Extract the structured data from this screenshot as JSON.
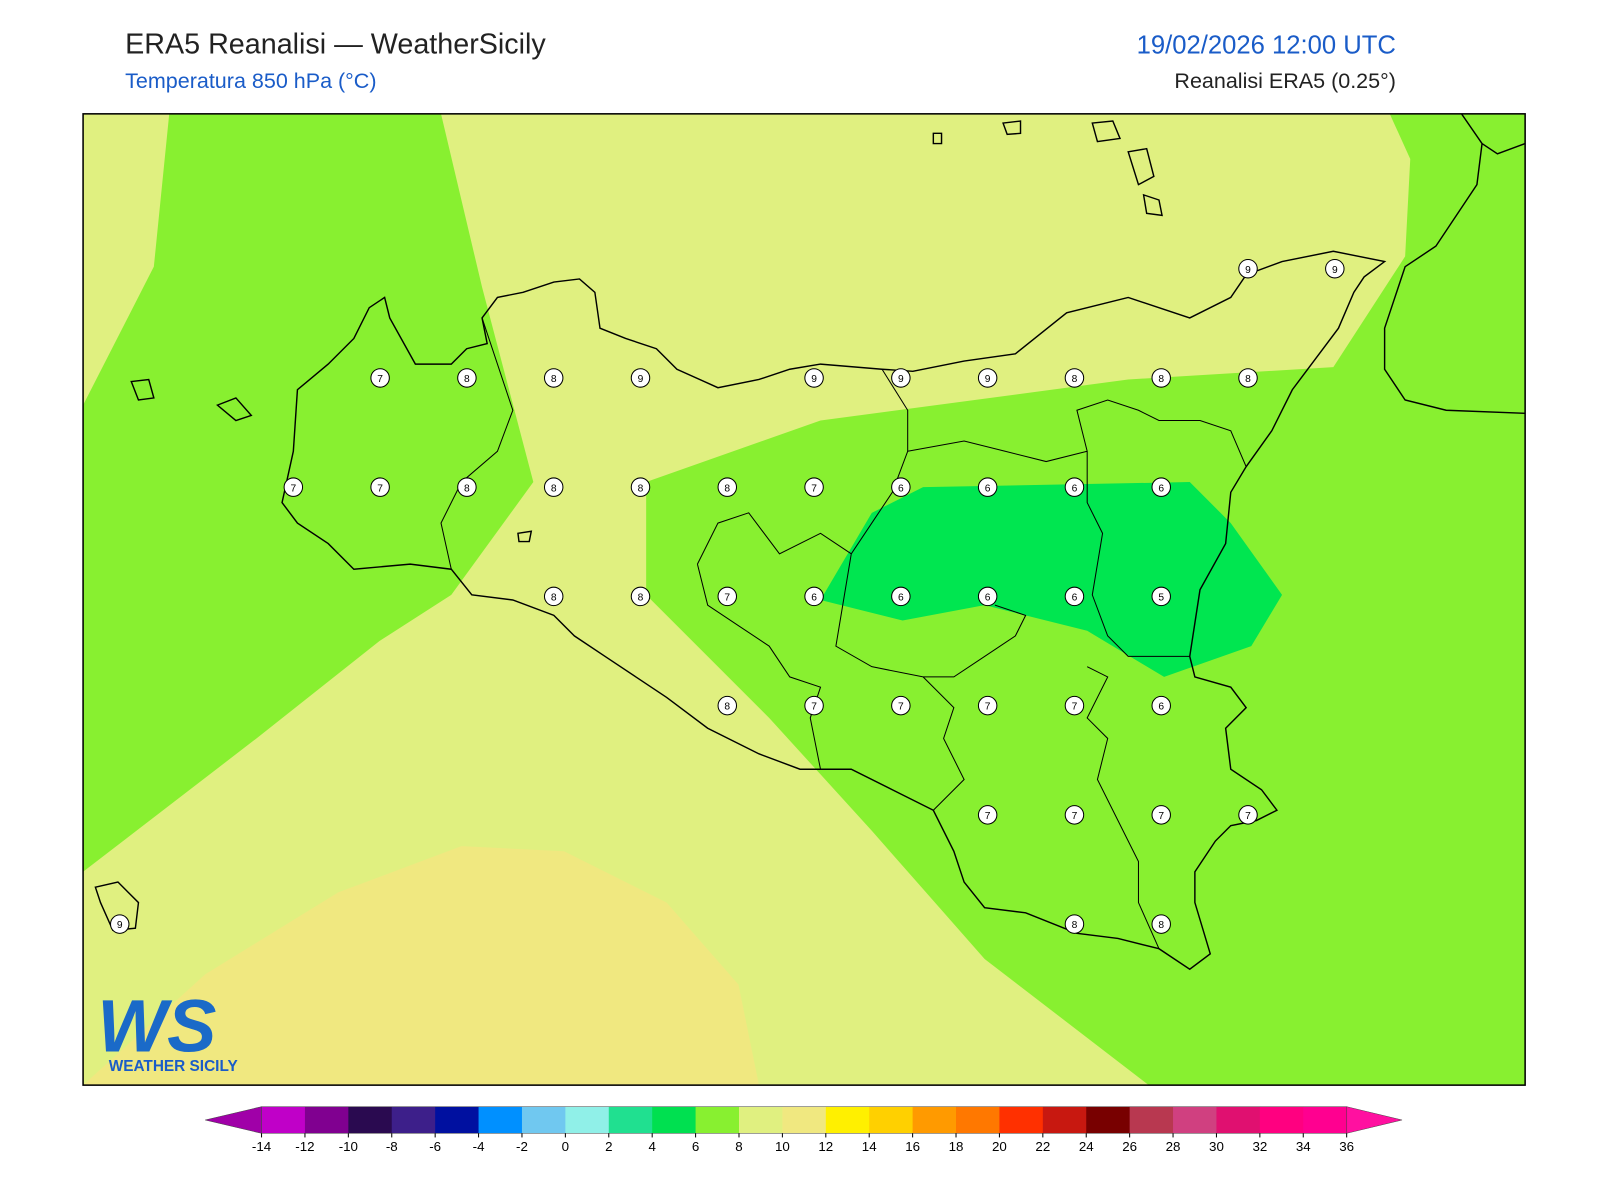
{
  "header": {
    "title": "ERA5 Reanalisi — WeatherSicily",
    "subtitle": "Temperatura 850 hPa (°C)",
    "datetime": "19/02/2026 12:00 UTC",
    "source": "Reanalisi ERA5 (0.25°)"
  },
  "points": [
    9,
    9,
    7,
    8,
    8,
    9,
    9,
    9,
    9,
    8,
    8,
    8,
    7,
    7,
    8,
    8,
    8,
    8,
    7,
    6,
    6,
    6,
    6,
    8,
    8,
    7,
    6,
    6,
    6,
    6,
    5,
    8,
    7,
    7,
    7,
    7,
    6,
    7,
    7,
    7,
    7,
    9,
    8,
    8
  ],
  "colorbar": {
    "ticks": [
      -14,
      -12,
      -10,
      -8,
      -6,
      -4,
      -2,
      0,
      2,
      4,
      6,
      8,
      10,
      12,
      14,
      16,
      18,
      20,
      22,
      24,
      26,
      28,
      30,
      32,
      34,
      36
    ],
    "colors": [
      "#c000c8",
      "#800090",
      "#2a0a50",
      "#3d1f8a",
      "#0010a0",
      "#0090ff",
      "#70c8f0",
      "#90f0e8",
      "#20e090",
      "#00e050",
      "#88f030",
      "#e0f080",
      "#f0e880",
      "#fff000",
      "#ffd000",
      "#ff9a00",
      "#ff7800",
      "#ff3000",
      "#c81810",
      "#780000",
      "#b83850",
      "#d04080",
      "#e01070",
      "#ff0080",
      "#ff0090"
    ],
    "under_color": "#a000a8",
    "over_color": "#ff10a0"
  },
  "logo": {
    "mark": "WS",
    "name": "WEATHER SICILY"
  }
}
